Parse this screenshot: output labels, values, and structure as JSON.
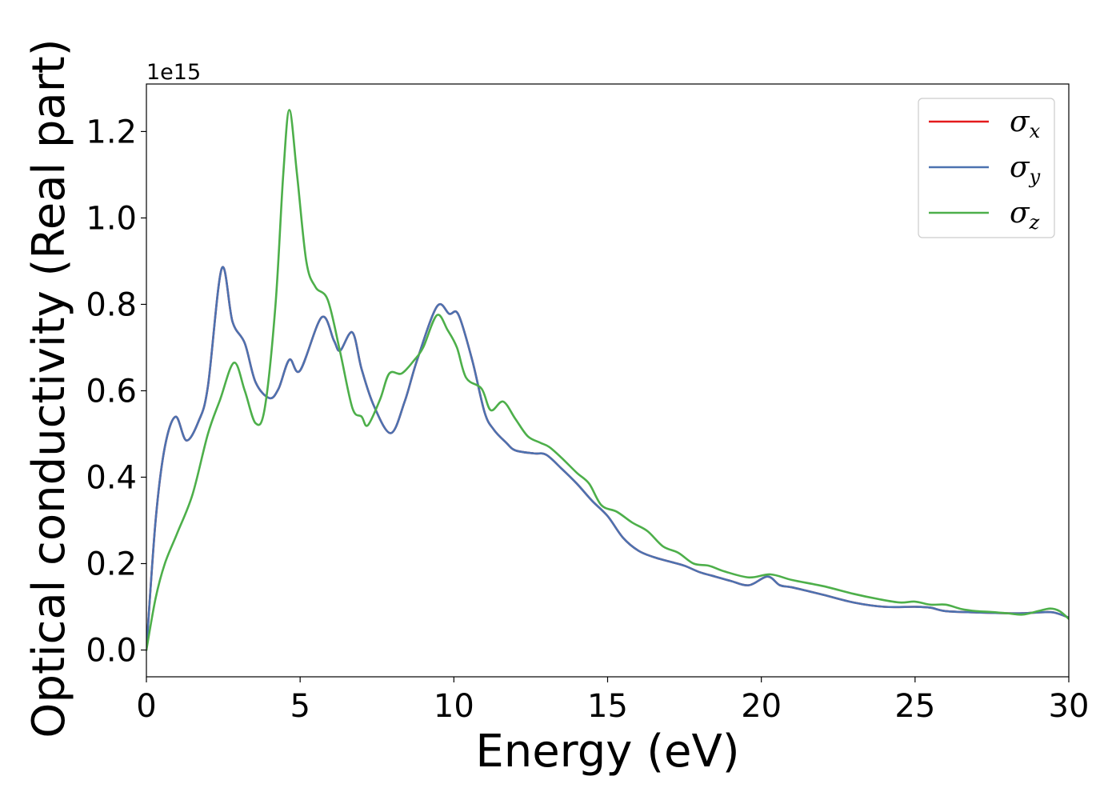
{
  "chart_data": {
    "type": "line",
    "title": "",
    "xlabel": "Energy (eV)",
    "ylabel": "Optical conductivity (Real part)",
    "y_offset_label": "1e15",
    "xlim": [
      0,
      30
    ],
    "ylim": [
      -0.062,
      1.31
    ],
    "xticks": [
      0,
      5,
      10,
      15,
      20,
      25,
      30
    ],
    "xtick_labels": [
      "0",
      "5",
      "10",
      "15",
      "20",
      "25",
      "30"
    ],
    "yticks": [
      0.0,
      0.2,
      0.4,
      0.6,
      0.8,
      1.0,
      1.2
    ],
    "ytick_labels": [
      "0.0",
      "0.2",
      "0.4",
      "0.6",
      "0.8",
      "1.0",
      "1.2"
    ],
    "grid": false,
    "legend_position": "top-right",
    "series": [
      {
        "name": "σx",
        "symbol": "σ",
        "subscript": "x",
        "color": "#e41a1c",
        "x": [
          0,
          0.3,
          0.6,
          0.95,
          1.3,
          1.7,
          2.0,
          2.45,
          2.8,
          3.2,
          3.55,
          4.0,
          4.3,
          4.65,
          5.0,
          5.7,
          6.1,
          6.3,
          6.7,
          7.0,
          7.4,
          7.95,
          8.4,
          8.8,
          9.45,
          9.85,
          10.15,
          10.6,
          11.0,
          11.3,
          11.7,
          12.0,
          12.6,
          13.0,
          13.5,
          14.0,
          14.5,
          15.0,
          15.5,
          16.0,
          16.5,
          17.0,
          17.5,
          18.0,
          18.5,
          19.0,
          19.6,
          20.2,
          20.6,
          21.0,
          22.0,
          23.0,
          24.0,
          25.0,
          25.5,
          26.0,
          27.0,
          28.0,
          28.5,
          29.0,
          29.5,
          30.0
        ],
        "y": [
          0.0,
          0.3,
          0.47,
          0.54,
          0.485,
          0.53,
          0.61,
          0.883,
          0.76,
          0.71,
          0.62,
          0.583,
          0.605,
          0.672,
          0.647,
          0.77,
          0.716,
          0.693,
          0.735,
          0.65,
          0.565,
          0.502,
          0.575,
          0.67,
          0.795,
          0.778,
          0.776,
          0.67,
          0.55,
          0.51,
          0.48,
          0.462,
          0.455,
          0.452,
          0.42,
          0.385,
          0.345,
          0.31,
          0.26,
          0.23,
          0.215,
          0.205,
          0.195,
          0.18,
          0.17,
          0.16,
          0.15,
          0.17,
          0.15,
          0.145,
          0.128,
          0.11,
          0.1,
          0.1,
          0.098,
          0.09,
          0.087,
          0.085,
          0.085,
          0.087,
          0.087,
          0.075
        ]
      },
      {
        "name": "σy",
        "symbol": "σ",
        "subscript": "y",
        "color": "#4c72b0",
        "x": [
          0,
          0.3,
          0.6,
          0.95,
          1.3,
          1.7,
          2.0,
          2.45,
          2.8,
          3.2,
          3.55,
          4.0,
          4.3,
          4.65,
          5.0,
          5.7,
          6.1,
          6.3,
          6.7,
          7.0,
          7.4,
          7.95,
          8.4,
          8.8,
          9.45,
          9.85,
          10.15,
          10.6,
          11.0,
          11.3,
          11.7,
          12.0,
          12.6,
          13.0,
          13.5,
          14.0,
          14.5,
          15.0,
          15.5,
          16.0,
          16.5,
          17.0,
          17.5,
          18.0,
          18.5,
          19.0,
          19.6,
          20.2,
          20.6,
          21.0,
          22.0,
          23.0,
          24.0,
          25.0,
          25.5,
          26.0,
          27.0,
          28.0,
          28.5,
          29.0,
          29.5,
          30.0
        ],
        "y": [
          0.0,
          0.3,
          0.47,
          0.54,
          0.485,
          0.53,
          0.61,
          0.883,
          0.76,
          0.71,
          0.62,
          0.583,
          0.605,
          0.672,
          0.647,
          0.77,
          0.716,
          0.693,
          0.735,
          0.65,
          0.565,
          0.502,
          0.575,
          0.67,
          0.795,
          0.778,
          0.776,
          0.67,
          0.55,
          0.51,
          0.48,
          0.462,
          0.455,
          0.452,
          0.42,
          0.385,
          0.345,
          0.31,
          0.26,
          0.23,
          0.215,
          0.205,
          0.195,
          0.18,
          0.17,
          0.16,
          0.15,
          0.17,
          0.15,
          0.145,
          0.128,
          0.11,
          0.1,
          0.1,
          0.098,
          0.09,
          0.087,
          0.085,
          0.085,
          0.087,
          0.087,
          0.075
        ]
      },
      {
        "name": "σz",
        "symbol": "σ",
        "subscript": "z",
        "color": "#4daf4a",
        "x": [
          0,
          0.3,
          0.6,
          1.0,
          1.5,
          2.0,
          2.4,
          2.85,
          3.2,
          3.55,
          3.85,
          4.2,
          4.45,
          4.65,
          4.9,
          5.2,
          5.5,
          5.9,
          6.3,
          6.7,
          7.0,
          7.2,
          7.6,
          7.9,
          8.3,
          8.7,
          9.0,
          9.45,
          9.8,
          10.1,
          10.4,
          10.9,
          11.2,
          11.6,
          12.0,
          12.4,
          12.8,
          13.1,
          13.5,
          14.0,
          14.4,
          14.8,
          15.3,
          15.8,
          16.3,
          16.8,
          17.3,
          17.8,
          18.3,
          18.8,
          19.6,
          20.3,
          21.0,
          22.0,
          23.0,
          23.8,
          24.5,
          25.0,
          25.5,
          26.0,
          26.5,
          27.0,
          27.5,
          28.0,
          28.5,
          29.0,
          29.4,
          29.7,
          30.0
        ],
        "y": [
          0.0,
          0.12,
          0.2,
          0.27,
          0.36,
          0.5,
          0.58,
          0.665,
          0.6,
          0.525,
          0.56,
          0.8,
          1.1,
          1.25,
          1.1,
          0.9,
          0.84,
          0.81,
          0.69,
          0.56,
          0.54,
          0.52,
          0.58,
          0.64,
          0.64,
          0.67,
          0.7,
          0.775,
          0.74,
          0.7,
          0.63,
          0.605,
          0.555,
          0.575,
          0.535,
          0.495,
          0.48,
          0.47,
          0.445,
          0.41,
          0.385,
          0.335,
          0.32,
          0.295,
          0.275,
          0.24,
          0.225,
          0.2,
          0.195,
          0.182,
          0.168,
          0.175,
          0.162,
          0.148,
          0.13,
          0.118,
          0.11,
          0.112,
          0.105,
          0.105,
          0.095,
          0.09,
          0.088,
          0.085,
          0.082,
          0.09,
          0.096,
          0.09,
          0.072
        ]
      }
    ]
  }
}
